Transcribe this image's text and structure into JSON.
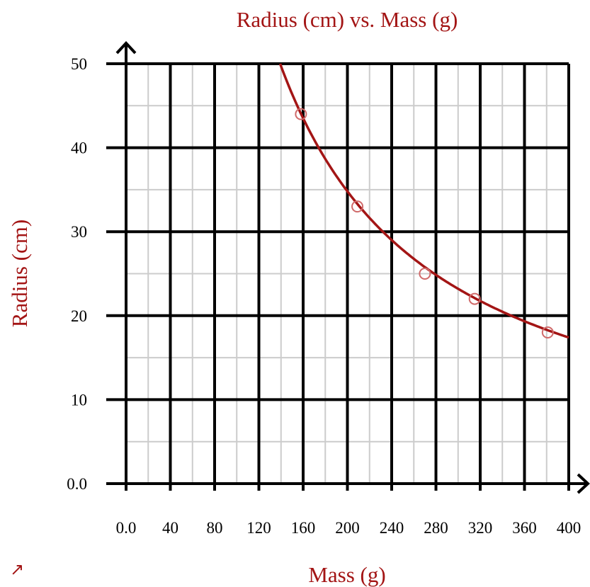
{
  "chart_data": {
    "type": "scatter",
    "title": "Radius (cm) vs. Mass (g)",
    "xlabel": "Mass (g)",
    "ylabel": "Radius (cm)",
    "xlim": [
      0,
      400
    ],
    "ylim": [
      0,
      50
    ],
    "x_ticks": [
      "0.0",
      "40",
      "80",
      "120",
      "160",
      "200",
      "240",
      "280",
      "320",
      "360",
      "400"
    ],
    "y_ticks": [
      "0.0",
      "10",
      "20",
      "30",
      "40",
      "50"
    ],
    "grid": true,
    "series": [
      {
        "points": [
          {
            "x": 158,
            "y": 44
          },
          {
            "x": 209,
            "y": 33
          },
          {
            "x": 270,
            "y": 25
          },
          {
            "x": 315,
            "y": 22
          },
          {
            "x": 381,
            "y": 18
          }
        ]
      }
    ],
    "fit": {
      "type": "inverse",
      "k": 6960
    },
    "colors": {
      "accent": "#a31515",
      "marker": "#d06a6a",
      "grid_major": "#000000",
      "grid_minor": "#cccccc"
    }
  },
  "ui": {
    "corner_arrow_icon": "↗"
  }
}
